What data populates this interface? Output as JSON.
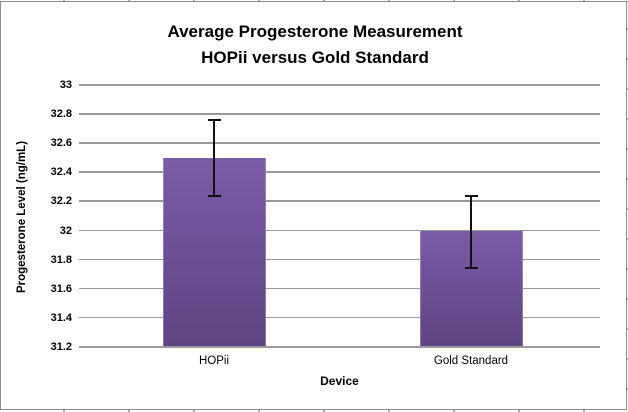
{
  "chart_data": {
    "type": "bar",
    "title": "Average Progesterone Measurement HOPii versus Gold Standard",
    "title_lines": [
      "Average Progesterone Measurement",
      "HOPii versus Gold Standard"
    ],
    "categories": [
      "HOPii",
      "Gold Standard"
    ],
    "values": [
      32.5,
      32.0
    ],
    "error_bars": [
      {
        "low": 32.24,
        "high": 32.76
      },
      {
        "low": 31.74,
        "high": 32.24
      }
    ],
    "xlabel": "Device",
    "ylabel": "Progesterone Level (ng/mL)",
    "ylim": [
      31.2,
      33.0
    ],
    "ytick_step": 0.2,
    "ytick_labels": [
      "33",
      "32.8",
      "32.6",
      "32.4",
      "32.2",
      "32",
      "31.8",
      "31.6",
      "31.4",
      "31.2"
    ],
    "grid": true,
    "legend_position": "none",
    "colors": {
      "bar_gradient_top": "#7b5ca8",
      "bar_gradient_bottom": "#5d4482",
      "gridline": "#9a9a9a",
      "error_bar": "#111111",
      "chart_border": "#8c8c8c",
      "text": "#000000",
      "background": "#ffffff"
    }
  }
}
